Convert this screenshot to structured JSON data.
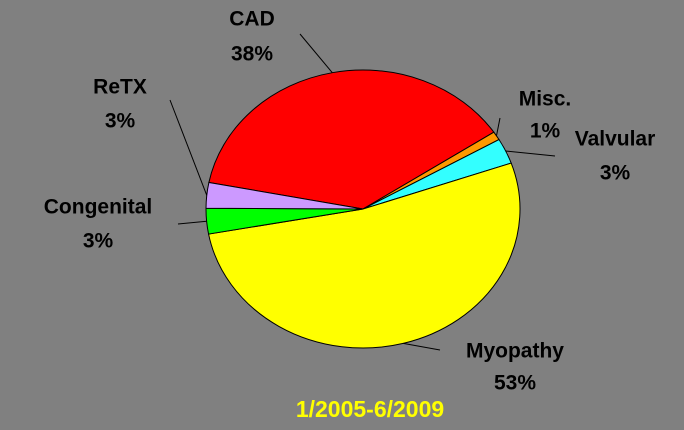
{
  "chart_data": {
    "type": "pie",
    "title": "1/2005-6/2009",
    "categories": [
      "CAD",
      "Misc.",
      "Valvular",
      "Myopathy",
      "Congenital",
      "ReTX"
    ],
    "values": [
      38,
      1,
      3,
      53,
      3,
      3
    ],
    "value_labels": [
      "38%",
      "1%",
      "3%",
      "53%",
      "3%",
      "3%"
    ],
    "colors": [
      "#ff0000",
      "#ff9900",
      "#33ffff",
      "#ffff00",
      "#00ff00",
      "#cc99ff"
    ]
  }
}
